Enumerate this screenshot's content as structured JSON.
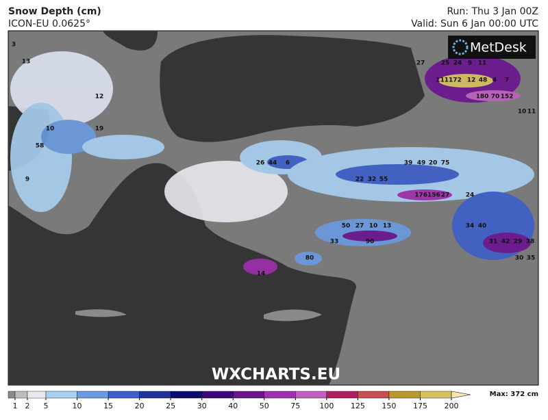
{
  "header": {
    "title": "Snow Depth (cm)",
    "model": "ICON-EU 0.0625°",
    "run": "Run: Thu 3 Jan 00Z",
    "valid": "Valid: Sun 6 Jan 00:00 UTC"
  },
  "logo": "MetDesk",
  "watermark": "WXCHARTS.EU",
  "colorbar": {
    "ticks": [
      1,
      2,
      5,
      10,
      15,
      20,
      25,
      30,
      40,
      50,
      75,
      100,
      125,
      150,
      175,
      200
    ],
    "colors": [
      "#8a8a8a",
      "#bdbdbd",
      "#e8e8f0",
      "#a8d0f0",
      "#6a9be0",
      "#3d5fc8",
      "#24339a",
      "#0c0c70",
      "#3a0878",
      "#6a1490",
      "#a030b0",
      "#c060c0",
      "#b02060",
      "#c85050",
      "#b89a30",
      "#d8c060",
      "#f5e6b8"
    ],
    "max_label": "Max: 372 cm"
  },
  "map_labels": [
    "27",
    "25",
    "24",
    "9",
    "11",
    "111172",
    "12",
    "48",
    "4",
    "7",
    "180",
    "70",
    "152",
    "10",
    "11",
    "26",
    "44",
    "6",
    "39",
    "49",
    "20",
    "75",
    "22",
    "32",
    "55",
    "176156",
    "27",
    "24",
    "50",
    "27",
    "10",
    "13",
    "33",
    "90",
    "34",
    "40",
    "31",
    "42",
    "29",
    "38",
    "30",
    "35",
    "80",
    "14",
    "58",
    "19",
    "10",
    "12",
    "9",
    "3",
    "13"
  ]
}
